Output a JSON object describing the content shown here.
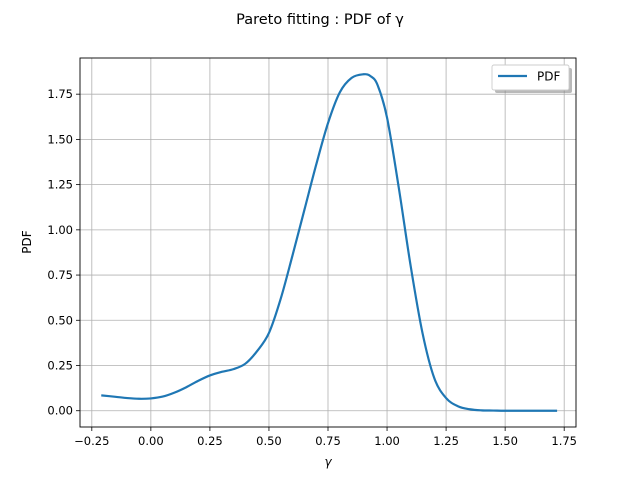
{
  "chart_data": {
    "type": "line",
    "title": "Pareto fitting : PDF of γ",
    "xlabel": "γ",
    "ylabel": "PDF",
    "xlim": [
      -0.3,
      1.8
    ],
    "ylim": [
      -0.09,
      1.95
    ],
    "xticks": [
      -0.25,
      0.0,
      0.25,
      0.5,
      0.75,
      1.0,
      1.25,
      1.5,
      1.75
    ],
    "xtick_labels": [
      "−0.25",
      "0.00",
      "0.25",
      "0.50",
      "0.75",
      "1.00",
      "1.25",
      "1.50",
      "1.75"
    ],
    "yticks": [
      0.0,
      0.25,
      0.5,
      0.75,
      1.0,
      1.25,
      1.5,
      1.75
    ],
    "ytick_labels": [
      "0.00",
      "0.25",
      "0.50",
      "0.75",
      "1.00",
      "1.25",
      "1.50",
      "1.75"
    ],
    "grid": true,
    "legend_position": "top-right",
    "series": [
      {
        "name": "PDF",
        "color": "#1f77b4",
        "x": [
          -0.21,
          -0.15,
          -0.1,
          -0.05,
          0.0,
          0.05,
          0.1,
          0.15,
          0.2,
          0.25,
          0.3,
          0.35,
          0.4,
          0.45,
          0.5,
          0.55,
          0.6,
          0.65,
          0.7,
          0.75,
          0.8,
          0.85,
          0.9,
          0.93,
          0.96,
          1.0,
          1.05,
          1.1,
          1.15,
          1.2,
          1.25,
          1.3,
          1.35,
          1.4,
          1.45,
          1.5,
          1.6,
          1.72
        ],
        "y": [
          0.085,
          0.077,
          0.07,
          0.066,
          0.068,
          0.078,
          0.1,
          0.13,
          0.165,
          0.195,
          0.215,
          0.23,
          0.26,
          0.33,
          0.43,
          0.62,
          0.86,
          1.11,
          1.36,
          1.59,
          1.76,
          1.84,
          1.86,
          1.85,
          1.8,
          1.62,
          1.23,
          0.8,
          0.43,
          0.18,
          0.07,
          0.025,
          0.008,
          0.002,
          0.001,
          0.0,
          0.0,
          0.0
        ]
      }
    ]
  }
}
